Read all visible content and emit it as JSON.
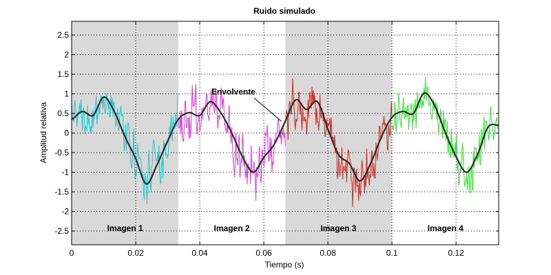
{
  "chart_data": {
    "type": "line",
    "title": "Ruido simulado",
    "xlabel": "Tiempo (s)",
    "ylabel": "Amplitud relativa",
    "xlim": [
      0,
      0.1333
    ],
    "ylim": [
      -2.85,
      2.85
    ],
    "xticks": [
      0,
      0.02,
      0.04,
      0.06,
      0.08,
      0.1,
      0.12
    ],
    "xtick_labels": [
      "0",
      "0.02",
      "0.04",
      "0.06",
      "0.08",
      "0.1",
      "0.12"
    ],
    "yticks": [
      -2.5,
      -2,
      -1.5,
      -1,
      -0.5,
      0,
      0.5,
      1,
      1.5,
      2,
      2.5
    ],
    "ytick_labels": [
      "-2.5",
      "-2",
      "-1.5",
      "-1",
      "-0.5",
      "0",
      "0.5",
      "1",
      "1.5",
      "2",
      "2.5"
    ],
    "grid": true,
    "shaded_regions": [
      {
        "x": [
          0,
          0.0333
        ],
        "color": "#d9d9d9"
      },
      {
        "x": [
          0.0667,
          0.1
        ],
        "color": "#d9d9d9"
      }
    ],
    "region_labels": [
      {
        "text": "Imagen 1",
        "x": 0.0167,
        "y": -2.43
      },
      {
        "text": "Imagen 2",
        "x": 0.05,
        "y": -2.43
      },
      {
        "text": "Imagen 3",
        "x": 0.0833,
        "y": -2.43
      },
      {
        "text": "Imagen 4",
        "x": 0.1167,
        "y": -2.43
      }
    ],
    "annotation": {
      "text": "Envolvente",
      "text_x": 0.0505,
      "text_y": 0.98,
      "point_x": 0.0655,
      "point_y": 0.3
    },
    "envelope": {
      "color": "#2b2b2b",
      "x": [
        0,
        0.0033,
        0.0067,
        0.01,
        0.0133,
        0.0167,
        0.02,
        0.0233,
        0.0267,
        0.03,
        0.0333,
        0.0367,
        0.04,
        0.0433,
        0.0467,
        0.05,
        0.0533,
        0.0567,
        0.06,
        0.0633,
        0.0667,
        0.07,
        0.0733,
        0.0767,
        0.08,
        0.0833,
        0.0867,
        0.09,
        0.0933,
        0.0967,
        0.1,
        0.1033,
        0.1067,
        0.11,
        0.1133,
        0.1167,
        0.12,
        0.1233,
        0.1267,
        0.13,
        0.1333
      ],
      "y": [
        0.35,
        0.55,
        0.45,
        0.92,
        0.55,
        -0.1,
        -0.65,
        -1.3,
        -0.8,
        -0.2,
        0.35,
        0.52,
        0.45,
        0.8,
        0.5,
        0.0,
        -0.6,
        -1.0,
        -0.62,
        -0.28,
        0.3,
        0.85,
        0.6,
        0.8,
        0.1,
        -0.55,
        -0.78,
        -1.22,
        -0.78,
        -0.1,
        0.4,
        0.55,
        0.5,
        1.02,
        0.7,
        0.0,
        -0.6,
        -1.0,
        -0.55,
        0.15,
        0.2
      ]
    },
    "series": [
      {
        "color": "#1fc7d1",
        "x_range": [
          0,
          0.0333
        ],
        "noise_amplitude": 0.45,
        "seed": 11
      },
      {
        "color": "#e633e6",
        "x_range": [
          0.0333,
          0.0667
        ],
        "noise_amplitude": 0.5,
        "seed": 23
      },
      {
        "color": "#d2281e",
        "x_range": [
          0.0667,
          0.1
        ],
        "noise_amplitude": 0.5,
        "seed": 37
      },
      {
        "color": "#2ee62e",
        "x_range": [
          0.1,
          0.1333
        ],
        "noise_amplitude": 0.42,
        "seed": 53
      }
    ]
  }
}
